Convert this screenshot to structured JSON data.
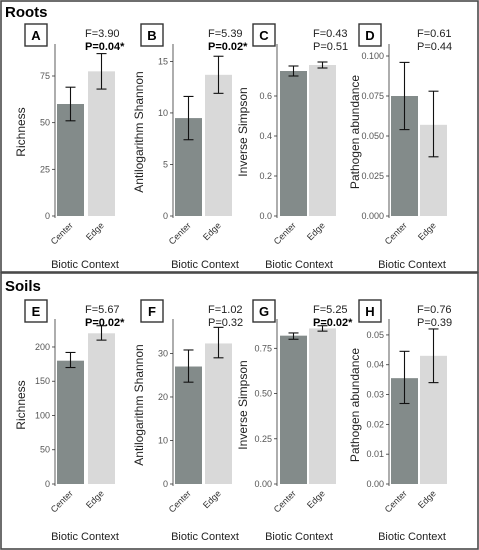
{
  "sections": [
    {
      "title": "Roots"
    },
    {
      "title": "Soils"
    }
  ],
  "colors": {
    "center": "#838b8a",
    "edge": "#d9d9d9"
  },
  "chart_data": [
    {
      "panel": "A",
      "section": "Roots",
      "type": "bar",
      "categories": [
        "Center",
        "Edge"
      ],
      "values": [
        60,
        77.5
      ],
      "err_low": [
        51,
        68
      ],
      "err_high": [
        69,
        87
      ],
      "ylabel": "Richness",
      "xlabel": "Biotic Context",
      "yticks": [
        "0",
        "25",
        "50",
        "75"
      ],
      "ytick_values": [
        0,
        25,
        50,
        75
      ],
      "ylim": [
        0,
        90
      ],
      "stat_f": "F=3.90",
      "stat_p": "P=0.04*",
      "p_bold": true
    },
    {
      "panel": "B",
      "section": "Roots",
      "type": "bar",
      "categories": [
        "Center",
        "Edge"
      ],
      "values": [
        9.5,
        13.7
      ],
      "err_low": [
        7.4,
        11.9
      ],
      "err_high": [
        11.6,
        15.5
      ],
      "ylabel": "Antilogarithm Shannon",
      "xlabel": "Biotic Context",
      "yticks": [
        "0",
        "5",
        "10",
        "15"
      ],
      "ytick_values": [
        0,
        5,
        10,
        15
      ],
      "ylim": [
        0,
        16.3
      ],
      "stat_f": "F=5.39",
      "stat_p": "P=0.02*",
      "p_bold": true
    },
    {
      "panel": "C",
      "section": "Roots",
      "type": "bar",
      "categories": [
        "Center",
        "Edge"
      ],
      "values": [
        0.725,
        0.755
      ],
      "err_low": [
        0.7,
        0.74
      ],
      "err_high": [
        0.75,
        0.77
      ],
      "ylabel": "Inverse Simpson",
      "xlabel": "Biotic Context",
      "yticks": [
        "0.0",
        "0.2",
        "0.4",
        "0.6"
      ],
      "ytick_values": [
        0,
        0.2,
        0.4,
        0.6
      ],
      "ylim": [
        0,
        0.84
      ],
      "stat_f": "F=0.43",
      "stat_p": "P=0.51",
      "p_bold": false
    },
    {
      "panel": "D",
      "section": "Roots",
      "type": "bar",
      "categories": [
        "Center",
        "Edge"
      ],
      "values": [
        0.075,
        0.057
      ],
      "err_low": [
        0.054,
        0.037
      ],
      "err_high": [
        0.096,
        0.078
      ],
      "ylabel": "Pathogen abundance",
      "xlabel": "Biotic Context",
      "yticks": [
        "0.000",
        "0.025",
        "0.050",
        "0.075",
        "0.100"
      ],
      "ytick_values": [
        0,
        0.025,
        0.05,
        0.075,
        0.1
      ],
      "ylim": [
        0,
        0.105
      ],
      "stat_f": "F=0.61",
      "stat_p": "P=0.44",
      "p_bold": false
    },
    {
      "panel": "E",
      "section": "Soils",
      "type": "bar",
      "categories": [
        "Center",
        "Edge"
      ],
      "values": [
        180,
        220
      ],
      "err_low": [
        170,
        210
      ],
      "err_high": [
        192,
        231
      ],
      "ylabel": "Richness",
      "xlabel": "Biotic Context",
      "yticks": [
        "0",
        "50",
        "100",
        "150",
        "200"
      ],
      "ytick_values": [
        0,
        50,
        100,
        150,
        200
      ],
      "ylim": [
        0,
        235
      ],
      "stat_f": "F=5.67",
      "stat_p": "P=0.02*",
      "p_bold": true
    },
    {
      "panel": "F",
      "section": "Soils",
      "type": "bar",
      "categories": [
        "Center",
        "Edge"
      ],
      "values": [
        27,
        32.3
      ],
      "err_low": [
        23.4,
        29
      ],
      "err_high": [
        30.8,
        36
      ],
      "ylabel": "Antilogarithm Shannon",
      "xlabel": "Biotic Context",
      "yticks": [
        "0",
        "10",
        "20",
        "30"
      ],
      "ytick_values": [
        0,
        10,
        20,
        30
      ],
      "ylim": [
        0,
        37
      ],
      "stat_f": "F=1.02",
      "stat_p": "P=0.32",
      "p_bold": false
    },
    {
      "panel": "G",
      "section": "Soils",
      "type": "bar",
      "categories": [
        "Center",
        "Edge"
      ],
      "values": [
        0.82,
        0.86
      ],
      "err_low": [
        0.8,
        0.845
      ],
      "err_high": [
        0.835,
        0.875
      ],
      "ylabel": "Inverse Simpson",
      "xlabel": "Biotic Context",
      "yticks": [
        "0.00",
        "0.25",
        "0.50",
        "0.75"
      ],
      "ytick_values": [
        0,
        0.25,
        0.5,
        0.75
      ],
      "ylim": [
        0,
        0.89
      ],
      "stat_f": "F=5.25",
      "stat_p": "P=0.02*",
      "p_bold": true
    },
    {
      "panel": "H",
      "section": "Soils",
      "type": "bar",
      "categories": [
        "Center",
        "Edge"
      ],
      "values": [
        0.0355,
        0.043
      ],
      "err_low": [
        0.027,
        0.034
      ],
      "err_high": [
        0.0445,
        0.052
      ],
      "ylabel": "Pathogen abundance",
      "xlabel": "Biotic Context",
      "yticks": [
        "0.00",
        "0.01",
        "0.02",
        "0.03",
        "0.04",
        "0.05"
      ],
      "ytick_values": [
        0,
        0.01,
        0.02,
        0.03,
        0.04,
        0.05
      ],
      "ylim": [
        0,
        0.054
      ],
      "stat_f": "F=0.76",
      "stat_p": "P=0.39",
      "p_bold": false
    }
  ]
}
